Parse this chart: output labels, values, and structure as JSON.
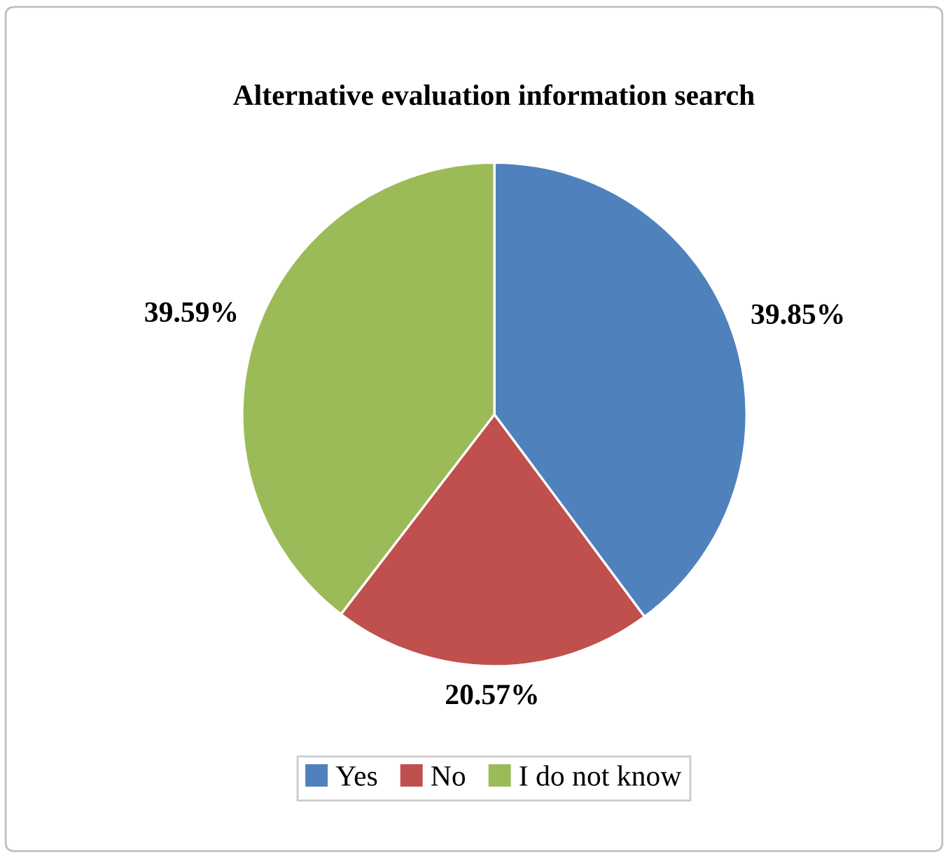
{
  "chart_data": {
    "type": "pie",
    "title": "Alternative evaluation information search",
    "categories": [
      "Yes",
      "No",
      "I do not know"
    ],
    "values": [
      39.85,
      20.57,
      39.59
    ],
    "value_labels": [
      "39.85%",
      "20.57%",
      "39.59%"
    ],
    "colors": [
      "#4f81bd",
      "#c0504d",
      "#9bbb59"
    ],
    "legend": "bottom"
  }
}
